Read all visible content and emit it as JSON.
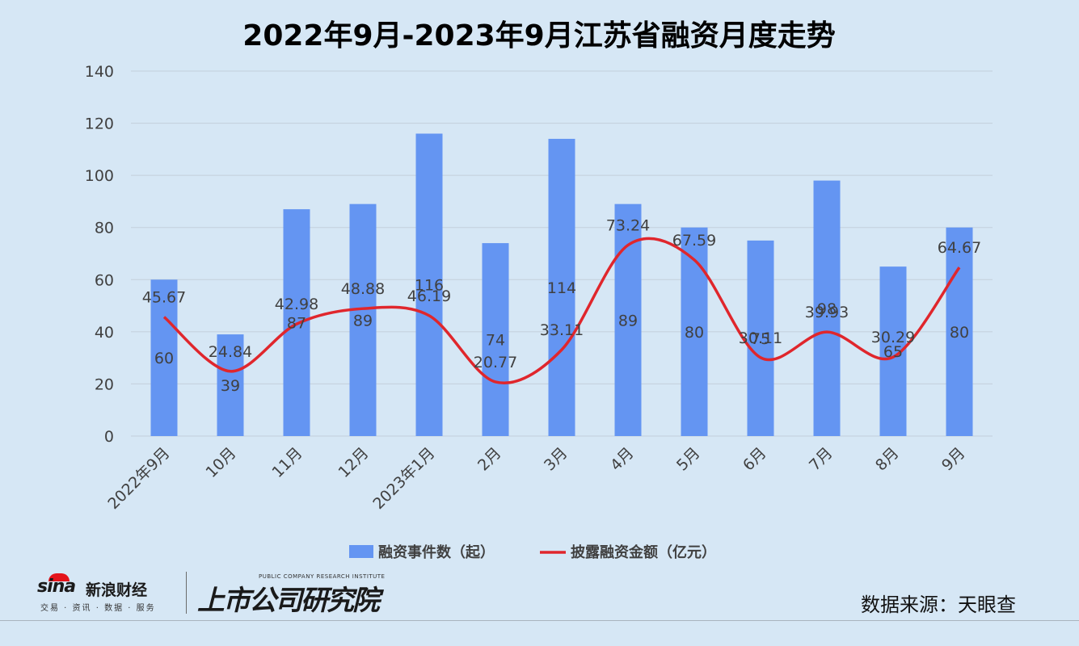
{
  "chart_data": {
    "type": "bar",
    "title": "2022年9月-2023年9月江苏省融资月度走势",
    "categories": [
      "2022年9月",
      "10月",
      "11月",
      "12月",
      "2023年1月",
      "2月",
      "3月",
      "4月",
      "5月",
      "6月",
      "7月",
      "8月",
      "9月"
    ],
    "series": [
      {
        "name": "融资事件数（起）",
        "kind": "bar",
        "color": "#6495f2",
        "values": [
          60,
          39,
          87,
          89,
          116,
          74,
          114,
          89,
          80,
          75,
          98,
          65,
          80
        ],
        "labels": [
          "60",
          "39",
          "87",
          "89",
          "116",
          "74",
          "114",
          "89",
          "80",
          "75",
          "98",
          "65",
          "80"
        ]
      },
      {
        "name": "披露融资金额（亿元）",
        "kind": "line",
        "smooth": true,
        "color": "#e0262c",
        "values": [
          45.67,
          24.84,
          42.98,
          48.88,
          46.19,
          20.77,
          33.11,
          73.24,
          67.59,
          30.11,
          39.93,
          30.29,
          64.67
        ],
        "labels": [
          "45.67",
          "24.84",
          "42.98",
          "48.88",
          "46.19",
          "20.77",
          "33.11",
          "73.24",
          "67.59",
          "30.11",
          "39.93",
          "30.29",
          "64.67"
        ]
      }
    ],
    "ylim": [
      0,
      140
    ],
    "yticks": [
      "0",
      "20",
      "40",
      "60",
      "80",
      "100",
      "120",
      "140"
    ],
    "grid": true,
    "legend_position": "bottom"
  },
  "footer": {
    "sina_word": "sina",
    "sina_name": "新浪财经",
    "sina_sub": "交易 · 资讯 · 数据 · 服务",
    "research_en": "PUBLIC COMPANY RESEARCH INSTITUTE",
    "research_cn": "上市公司研究院",
    "source": "数据来源：天眼查"
  }
}
